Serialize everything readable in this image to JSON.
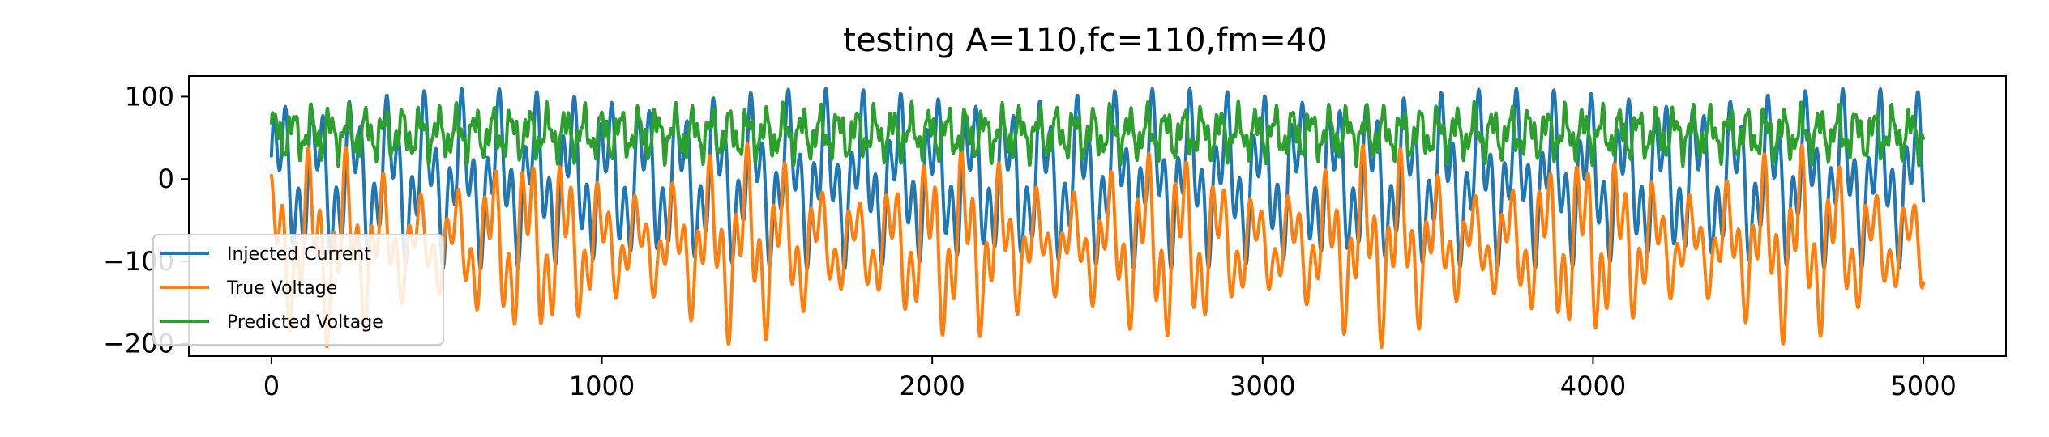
{
  "chart_data": {
    "type": "line",
    "title": "testing A=110,fc=110,fm=40",
    "xlabel": "",
    "ylabel": "",
    "xlim": [
      -250,
      5250
    ],
    "ylim": [
      -215,
      125
    ],
    "x_ticks": [
      0,
      1000,
      2000,
      3000,
      4000,
      5000
    ],
    "x_tick_labels": [
      "0",
      "1000",
      "2000",
      "3000",
      "4000",
      "5000"
    ],
    "y_ticks": [
      100,
      0,
      -100,
      -200
    ],
    "y_tick_labels": [
      "100",
      "0",
      "−100",
      "−200"
    ],
    "grid": false,
    "legend_position": "lower-left",
    "x_range": [
      0,
      5000
    ],
    "num_points": 5001,
    "series": [
      {
        "name": "Injected Current",
        "color": "#1f77b4",
        "description_values": {
          "min": -110,
          "max": 110
        }
      },
      {
        "name": "True Voltage",
        "color": "#ff7f0e",
        "description_values": {
          "min": -205,
          "max": 50
        }
      },
      {
        "name": "Predicted Voltage",
        "color": "#2ca02c",
        "description_values": {
          "min": 10,
          "max": 98
        }
      }
    ]
  }
}
